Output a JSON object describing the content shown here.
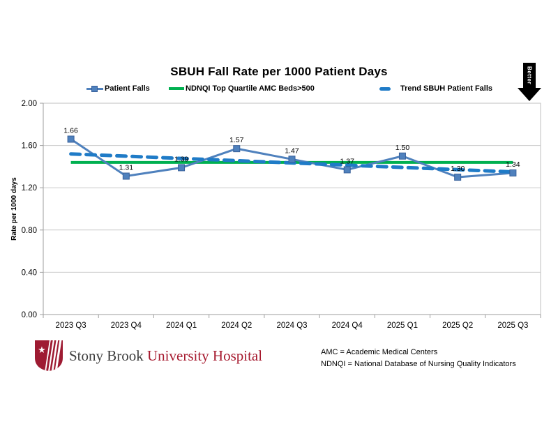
{
  "title": "SBUH Fall Rate per 1000 Patient Days",
  "better_label": "Better",
  "legend": {
    "patient_falls": "Patient Falls",
    "target": "NDNQI Top Quartile AMC Beds>500",
    "trend": "Trend SBUH Patient Falls"
  },
  "chart_data": {
    "type": "line",
    "title": "SBUH Fall Rate per 1000 Patient Days",
    "categories": [
      "2023 Q3",
      "2023 Q4",
      "2024 Q1",
      "2024 Q2",
      "2024 Q3",
      "2024 Q4",
      "2025 Q1",
      "2025 Q2",
      "2025 Q3"
    ],
    "series": [
      {
        "name": "Patient Falls",
        "values": [
          1.66,
          1.31,
          1.39,
          1.57,
          1.47,
          1.37,
          1.5,
          1.3,
          1.34
        ],
        "color": "#4F81BD"
      }
    ],
    "data_labels": [
      "1.66",
      "1.31",
      "1.39",
      "1.57",
      "1.47",
      "1.37",
      "1.50",
      "1.30",
      "1.34"
    ],
    "target_line": {
      "name": "NDNQI Top Quartile AMC Beds>500",
      "value": 1.44,
      "color": "#00B050"
    },
    "trend_line": {
      "name": "Trend SBUH Patient Falls",
      "start": 1.52,
      "end": 1.35,
      "color": "#1F7BC7",
      "style": "dashed"
    },
    "ylabel": "Rate per 1000 days",
    "ylim": [
      0.0,
      2.0
    ],
    "ytick_step": 0.4,
    "y_tick_labels": [
      "0.00",
      "0.40",
      "0.80",
      "1.20",
      "1.60",
      "2.00"
    ],
    "grid": true,
    "legend_position": "top"
  },
  "colors": {
    "series_blue": "#4F81BD",
    "marker_border": "#38609A",
    "target_green": "#00B050",
    "trend_blue": "#1F7BC7",
    "gridline": "#C9C9C9",
    "axis": "#9E9E9E",
    "plot_border": "#BFBFBF",
    "logo_red": "#9E1B32"
  },
  "logo": {
    "prefix": "Stony Brook",
    "suffix": "University Hospital"
  },
  "footnotes": [
    "AMC = Academic Medical Centers",
    "NDNQI = National Database of Nursing Quality Indicators"
  ]
}
